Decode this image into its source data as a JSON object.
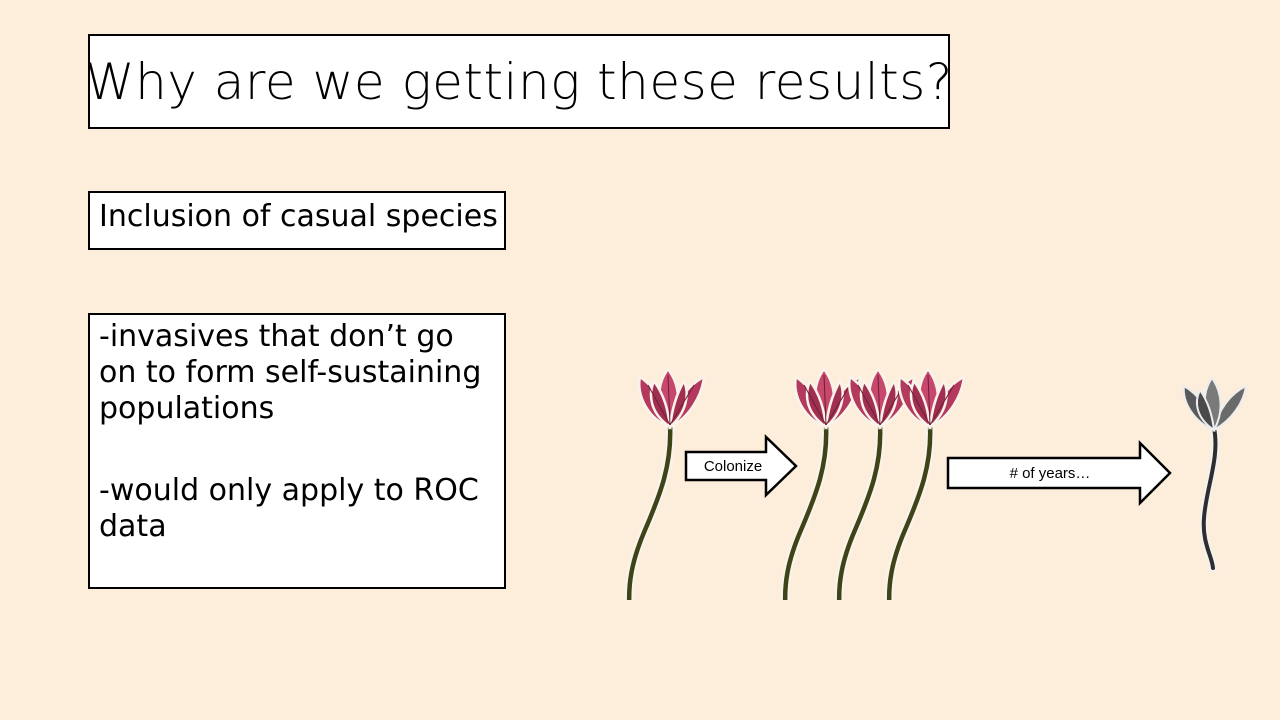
{
  "slide": {
    "title": "Why are we getting these results?",
    "subtitle": "Inclusion of casual species",
    "body": {
      "point1": "-invasives that don’t go on to form self-sustaining populations",
      "point2": "-would only apply to ROC data"
    }
  },
  "diagram": {
    "arrow1_label": "Colonize",
    "arrow2_label": "# of years…",
    "colors": {
      "petal": "#B33A5E",
      "petal_light": "#D56C8A",
      "stem": "#3E4318",
      "wilted": "#5A5A5A",
      "background": "#FDEEDC"
    },
    "icons": [
      "pink-flower-icon",
      "wilted-flower-icon",
      "right-arrow-icon"
    ]
  }
}
